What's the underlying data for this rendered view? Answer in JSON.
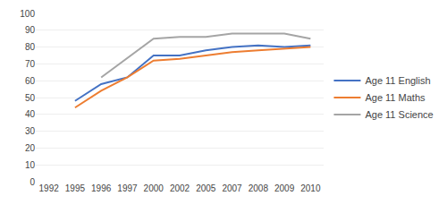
{
  "chart_data": {
    "type": "line",
    "categories": [
      "1992",
      "1995",
      "1996",
      "1997",
      "2000",
      "2002",
      "2005",
      "2007",
      "2008",
      "2009",
      "2010"
    ],
    "series": [
      {
        "name": "Age 11 English",
        "color": "#4472C4",
        "values": [
          null,
          48,
          58,
          62,
          75,
          75,
          78,
          80,
          81,
          80,
          81
        ]
      },
      {
        "name": "Age 11 Maths",
        "color": "#ED7D31",
        "values": [
          null,
          44,
          54,
          62,
          72,
          73,
          75,
          77,
          78,
          79,
          80
        ]
      },
      {
        "name": "Age 11 Science",
        "color": "#A5A5A5",
        "values": [
          null,
          null,
          62,
          null,
          85,
          86,
          86,
          88,
          88,
          88,
          85
        ]
      }
    ],
    "ylim": [
      0,
      100
    ],
    "yticks": [
      0,
      10,
      20,
      30,
      40,
      50,
      60,
      70,
      80,
      90,
      100
    ],
    "grid": true,
    "legend": "right"
  }
}
